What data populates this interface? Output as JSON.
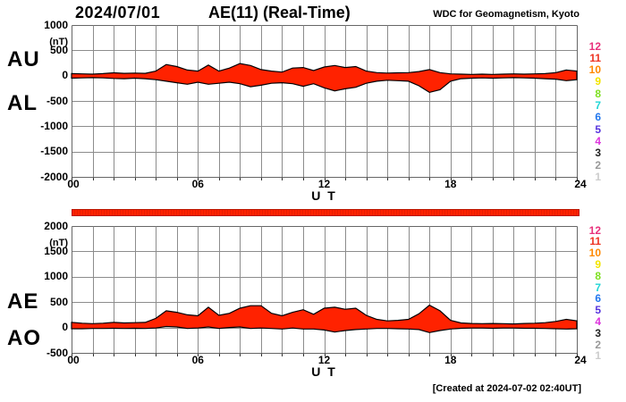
{
  "header": {
    "date": "2024/07/01",
    "title": "AE(11) (Real-Time)",
    "credit": "WDC for Geomagnetism, Kyoto"
  },
  "footer": {
    "created": "[Created at 2024-07-02 02:40UT]"
  },
  "colors": {
    "fill": "#ff2200",
    "outline": "#000000",
    "grid": "#8c8c8c",
    "border": "#666666",
    "tick": "#333333",
    "bar": "#ff2200",
    "bar_border": "#bb1500"
  },
  "station_scale": {
    "labels": [
      "12",
      "11",
      "10",
      "9",
      "8",
      "7",
      "6",
      "5",
      "4",
      "3",
      "2",
      "1"
    ],
    "colors": [
      "#e8327c",
      "#ee3322",
      "#ff8800",
      "#f2e400",
      "#7ee022",
      "#22d5d5",
      "#2277ee",
      "#5533dd",
      "#dd33dd",
      "#222222",
      "#999999",
      "#cccccc"
    ]
  },
  "xaxis": {
    "ticks": [
      "00",
      "06",
      "12",
      "18",
      "24"
    ],
    "tick_hours": [
      0,
      6,
      12,
      18,
      24
    ],
    "label": "U T"
  },
  "panel_top": {
    "left_labels": [
      "AU",
      "AL"
    ],
    "unit": "(nT)",
    "yticks": [
      "1000",
      "500",
      "0",
      "-500",
      "-1000",
      "-1500",
      "-2000"
    ]
  },
  "panel_bottom": {
    "left_labels": [
      "AE",
      "AO"
    ],
    "unit": "(nT)",
    "yticks": [
      "2000",
      "1500",
      "1000",
      "500",
      "0",
      "-500"
    ]
  },
  "chart_data": [
    {
      "type": "area",
      "title": "AU / AL auroral electrojet indices, 2024/07/01 (Real-Time, 11 stations)",
      "xlabel": "U T",
      "ylabel": "(nT)",
      "x_range_hours": [
        0,
        24
      ],
      "x_step_hours": 0.5,
      "ylim": [
        -2000,
        1000
      ],
      "ytick_step": 500,
      "grid": true,
      "series": [
        {
          "name": "AU",
          "values": [
            40,
            35,
            30,
            40,
            55,
            45,
            50,
            45,
            90,
            220,
            180,
            110,
            90,
            210,
            90,
            150,
            240,
            200,
            120,
            90,
            70,
            150,
            160,
            100,
            170,
            200,
            160,
            180,
            90,
            60,
            50,
            55,
            60,
            80,
            120,
            60,
            35,
            30,
            25,
            30,
            25,
            30,
            35,
            30,
            35,
            40,
            60,
            110,
            90
          ]
        },
        {
          "name": "AL",
          "values": [
            -50,
            -45,
            -40,
            -45,
            -55,
            -60,
            -50,
            -60,
            -80,
            -110,
            -140,
            -170,
            -130,
            -170,
            -150,
            -130,
            -160,
            -220,
            -190,
            -150,
            -140,
            -160,
            -210,
            -160,
            -240,
            -300,
            -260,
            -230,
            -150,
            -110,
            -90,
            -100,
            -110,
            -200,
            -330,
            -280,
            -110,
            -60,
            -50,
            -45,
            -50,
            -45,
            -40,
            -45,
            -50,
            -60,
            -70,
            -100,
            -80
          ]
        }
      ]
    },
    {
      "type": "area",
      "title": "AE / AO auroral electrojet indices, 2024/07/01 (Real-Time, 11 stations)",
      "xlabel": "U T",
      "ylabel": "(nT)",
      "x_range_hours": [
        0,
        24
      ],
      "x_step_hours": 0.5,
      "ylim": [
        -500,
        2000
      ],
      "ytick_step": 500,
      "grid": true,
      "series": [
        {
          "name": "AE",
          "values": [
            100,
            85,
            75,
            85,
            100,
            90,
            95,
            100,
            180,
            330,
            300,
            250,
            230,
            400,
            240,
            280,
            380,
            430,
            430,
            280,
            230,
            300,
            350,
            260,
            380,
            400,
            360,
            380,
            240,
            160,
            130,
            140,
            160,
            270,
            440,
            330,
            140,
            90,
            80,
            75,
            80,
            75,
            70,
            80,
            85,
            95,
            120,
            160,
            130
          ]
        },
        {
          "name": "AO",
          "values": [
            -25,
            -25,
            -20,
            -20,
            -15,
            -20,
            -15,
            -20,
            -10,
            20,
            10,
            -20,
            -10,
            10,
            -20,
            0,
            10,
            -20,
            -10,
            -20,
            -30,
            -10,
            -30,
            -30,
            -50,
            -90,
            -60,
            -40,
            -30,
            -20,
            -20,
            -25,
            -30,
            -40,
            -100,
            -60,
            -30,
            -15,
            -10,
            -10,
            -15,
            -10,
            -10,
            -15,
            -15,
            -20,
            -25,
            -30,
            -25
          ]
        }
      ]
    }
  ]
}
